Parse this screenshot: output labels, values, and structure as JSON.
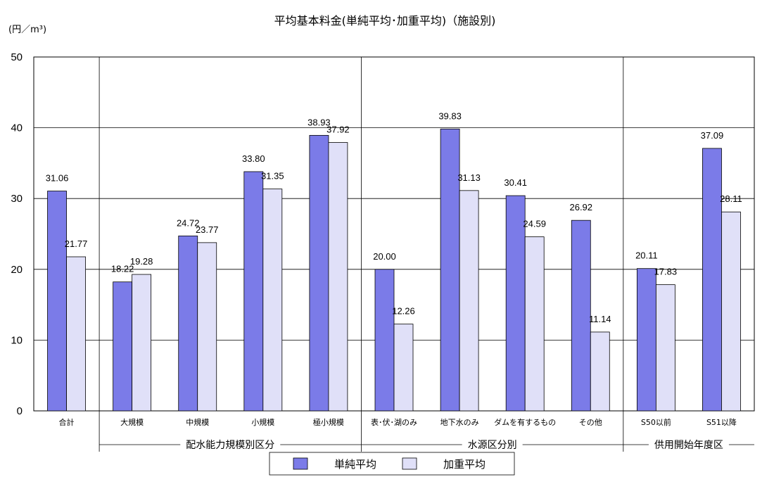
{
  "chart_data": {
    "type": "bar",
    "title": "平均基本料金(単純平均･加重平均)（施設別)",
    "unit_label": "(円／m³)",
    "ylim": [
      0,
      50
    ],
    "yticks": [
      0,
      10,
      20,
      30,
      40,
      50
    ],
    "grid": true,
    "categories": [
      "合計",
      "大規模",
      "中規模",
      "小規模",
      "極小規模",
      "表･伏･湖のみ",
      "地下水のみ",
      "ダムを有するもの",
      "その他",
      "S50以前",
      "S51以降"
    ],
    "groups": [
      {
        "label": "配水能力規模別区分",
        "categories": [
          "大規模",
          "中規模",
          "小規模",
          "極小規模"
        ]
      },
      {
        "label": "水源区分別",
        "categories": [
          "表･伏･湖のみ",
          "地下水のみ",
          "ダムを有するもの",
          "その他"
        ]
      },
      {
        "label": "供用開始年度区",
        "categories": [
          "S50以前",
          "S51以降"
        ]
      }
    ],
    "series": [
      {
        "name": "単純平均",
        "color": "#7b7be8",
        "values": [
          31.06,
          18.22,
          24.72,
          33.8,
          38.93,
          20.0,
          39.83,
          30.41,
          26.92,
          20.11,
          37.09
        ]
      },
      {
        "name": "加重平均",
        "color": "#e0e0f8",
        "values": [
          21.77,
          19.28,
          23.77,
          31.35,
          37.92,
          12.26,
          31.13,
          24.59,
          11.14,
          17.83,
          28.11
        ]
      }
    ],
    "legend_position": "bottom-center"
  }
}
